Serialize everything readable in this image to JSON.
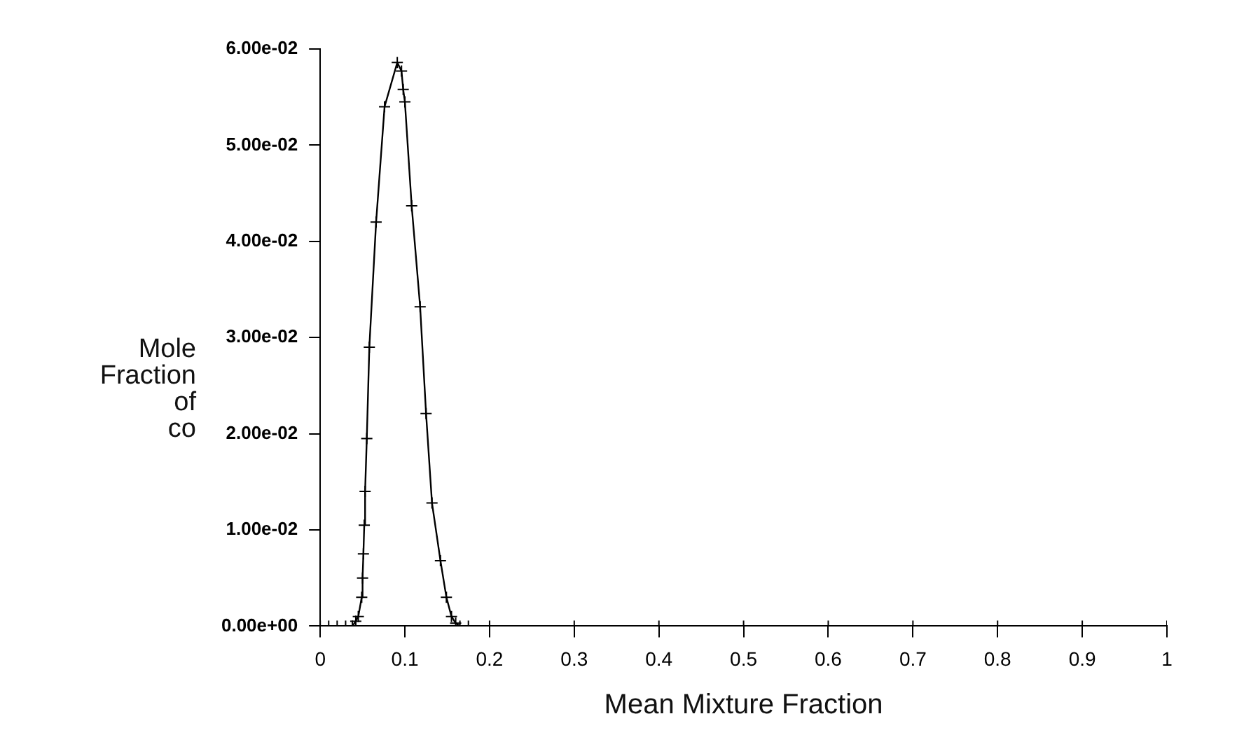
{
  "chart_data": {
    "type": "line",
    "xlabel": "Mean Mixture Fraction",
    "ylabel": "Mole\nFraction\nof\nco",
    "x": [
      0,
      0.01,
      0.02,
      0.03,
      0.038,
      0.042,
      0.045,
      0.049,
      0.05,
      0.051,
      0.052,
      0.053,
      0.055,
      0.058,
      0.066,
      0.076,
      0.091,
      0.096,
      0.098,
      0.1,
      0.108,
      0.118,
      0.125,
      0.132,
      0.142,
      0.149,
      0.155,
      0.16,
      0.165,
      0.175,
      0.2,
      0.3,
      0.4,
      0.5,
      0.6,
      0.7,
      0.8,
      0.9,
      1
    ],
    "series": [
      {
        "color": "#000000",
        "values": [
          0,
          0,
          0,
          0,
          0,
          0.0005,
          0.001,
          0.003,
          0.005,
          0.0075,
          0.0105,
          0.014,
          0.0195,
          0.029,
          0.042,
          0.054,
          0.0586,
          0.0577,
          0.0558,
          0.0545,
          0.0437,
          0.0332,
          0.0221,
          0.0128,
          0.0068,
          0.003,
          0.001,
          0.0003,
          0,
          0,
          0,
          0,
          0,
          0,
          0,
          0,
          0,
          0,
          0
        ]
      }
    ],
    "xlim": [
      0,
      1
    ],
    "xticks": [
      0,
      0.1,
      0.2,
      0.3,
      0.4,
      0.5,
      0.6,
      0.7,
      0.8,
      0.9,
      1
    ],
    "ylim": [
      0,
      0.06
    ],
    "yticks": [
      {
        "value": 0,
        "label": "0.00e+00"
      },
      {
        "value": 0.01,
        "label": "1.00e-02"
      },
      {
        "value": 0.02,
        "label": "2.00e-02"
      },
      {
        "value": 0.03,
        "label": "3.00e-02"
      },
      {
        "value": 0.04,
        "label": "4.00e-02"
      },
      {
        "value": 0.05,
        "label": "5.00e-02"
      },
      {
        "value": 0.06,
        "label": "6.00e-02"
      }
    ],
    "grid": false,
    "legend": false,
    "marker": "cross",
    "line_style": "solid"
  }
}
